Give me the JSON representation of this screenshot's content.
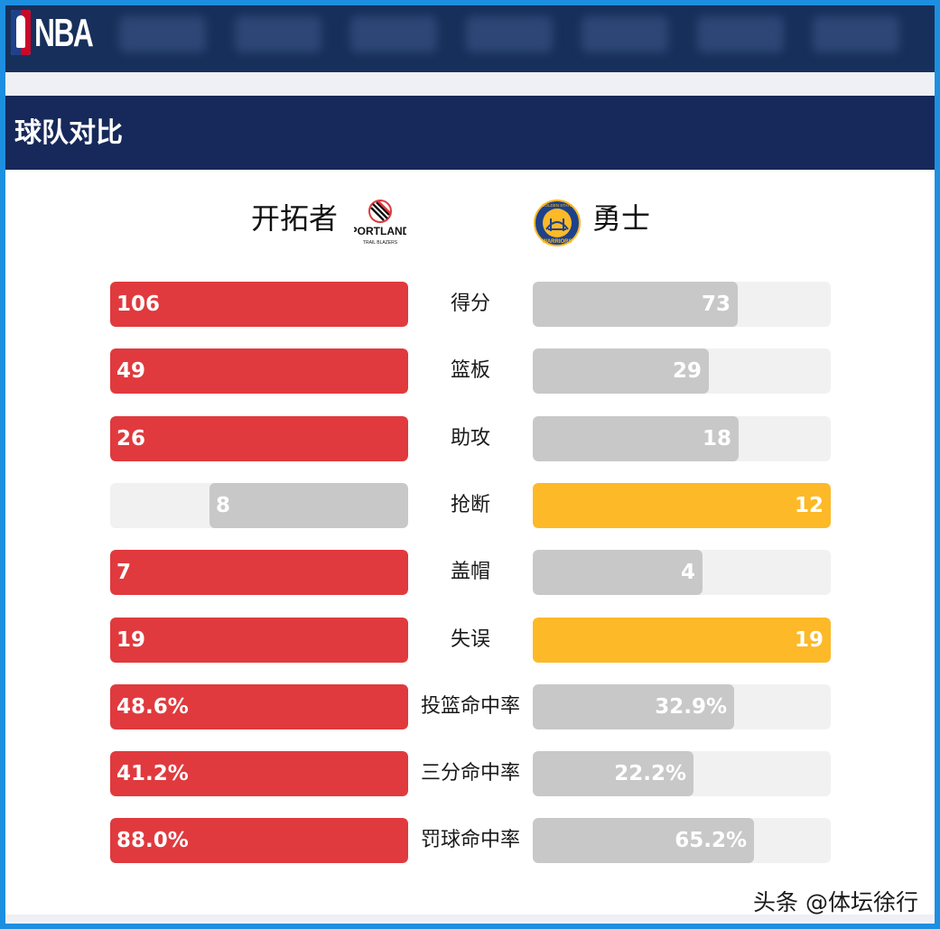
{
  "header": {
    "logo_text": "NBA",
    "section_title": "球队对比"
  },
  "teams": {
    "left": {
      "name": "开拓者",
      "logo": "portland-trail-blazers-logo",
      "logo_text": "PORTLAND",
      "logo_subtext": "TRAIL BLAZERS"
    },
    "right": {
      "name": "勇士",
      "logo": "golden-state-warriors-logo",
      "logo_text": "WARRIORS",
      "logo_subtext": "GOLDEN STATE"
    }
  },
  "colors": {
    "leader_left": "#e03a3e",
    "leader_right": "#fdb927",
    "trailer": "#c8c8c8",
    "track": "#f1f1f1",
    "header_bg": "#17305b",
    "section_bg": "#17295a",
    "frame": "#1d8fe0"
  },
  "stats": [
    {
      "label": "得分",
      "left": "106",
      "right": "73",
      "left_frac": 1.0,
      "right_frac": 0.689,
      "leader": "left"
    },
    {
      "label": "篮板",
      "left": "49",
      "right": "29",
      "left_frac": 1.0,
      "right_frac": 0.592,
      "leader": "left"
    },
    {
      "label": "助攻",
      "left": "26",
      "right": "18",
      "left_frac": 1.0,
      "right_frac": 0.692,
      "leader": "left"
    },
    {
      "label": "抢断",
      "left": "8",
      "right": "12",
      "left_frac": 0.667,
      "right_frac": 1.0,
      "leader": "right"
    },
    {
      "label": "盖帽",
      "left": "7",
      "right": "4",
      "left_frac": 1.0,
      "right_frac": 0.571,
      "leader": "left"
    },
    {
      "label": "失误",
      "left": "19",
      "right": "19",
      "left_frac": 1.0,
      "right_frac": 1.0,
      "leader": "both"
    },
    {
      "label": "投篮命中率",
      "left": "48.6%",
      "right": "32.9%",
      "left_frac": 1.0,
      "right_frac": 0.677,
      "leader": "left"
    },
    {
      "label": "三分命中率",
      "left": "41.2%",
      "right": "22.2%",
      "left_frac": 1.0,
      "right_frac": 0.539,
      "leader": "left"
    },
    {
      "label": "罚球命中率",
      "left": "88.0%",
      "right": "65.2%",
      "left_frac": 1.0,
      "right_frac": 0.741,
      "leader": "left"
    }
  ],
  "watermark": "头条 @体坛徐行"
}
